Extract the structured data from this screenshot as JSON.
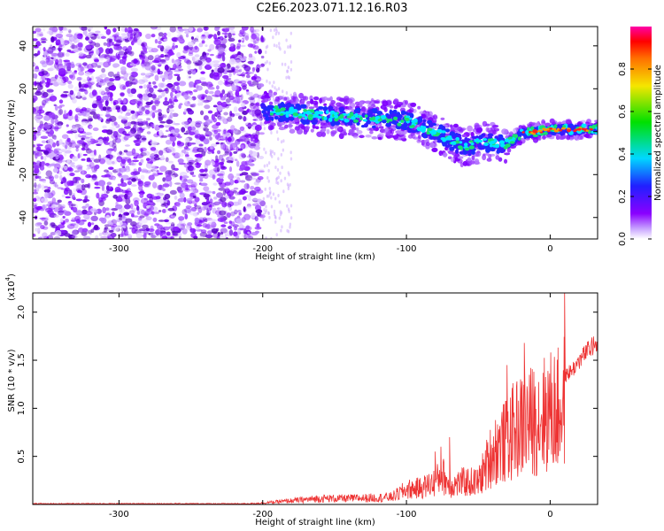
{
  "title": "C2E6.2023.071.12.16.R03",
  "colors": {
    "line": "#ee3333",
    "axis": "#000000",
    "scatter_main": "#7f00ff",
    "scatter_light": "#c9a4ff",
    "band_mid": "#00e5ff",
    "band_high": "#ff2020"
  },
  "chart_data": [
    {
      "type": "heatmap",
      "xlabel": "Height of straight line (km)",
      "ylabel": "Frequency (Hz)",
      "xlim": [
        -360,
        33
      ],
      "ylim": [
        -50,
        49
      ],
      "x_ticks": [
        -300,
        -200,
        -100,
        0
      ],
      "x_tick_labels": [
        "-300",
        "-200",
        "-100",
        "0"
      ],
      "y_ticks": [
        -40,
        -20,
        0,
        20,
        40
      ],
      "y_tick_labels": [
        "-40",
        "-20",
        "0",
        "20",
        "40"
      ],
      "grid": false,
      "band_centerline": [
        {
          "x": -200,
          "y": 10
        },
        {
          "x": -150,
          "y": 7
        },
        {
          "x": -120,
          "y": 6
        },
        {
          "x": -100,
          "y": 5
        },
        {
          "x": -80,
          "y": 0
        },
        {
          "x": -60,
          "y": -7
        },
        {
          "x": -45,
          "y": -5
        },
        {
          "x": -30,
          "y": -6
        },
        {
          "x": -20,
          "y": -1
        },
        {
          "x": 0,
          "y": 1
        },
        {
          "x": 30,
          "y": 1
        }
      ],
      "colorbar": {
        "label": "Normalized spectral amplitude",
        "range": [
          0.0,
          1.0
        ],
        "ticks": [
          0.0,
          0.2,
          0.4,
          0.6,
          0.8
        ],
        "tick_labels": [
          "0.0",
          "0.2",
          "0.4",
          "0.6",
          "0.8"
        ],
        "colormap": "rainbow"
      }
    },
    {
      "type": "line",
      "xlabel": "Height of straight line (km)",
      "ylabel": "SNR (10 * v/v)",
      "y_multiplier": "(x10",
      "y_multiplier_exp": "4",
      "y_multiplier_close": ")",
      "xlim": [
        -360,
        33
      ],
      "ylim": [
        0,
        2.2
      ],
      "x_ticks": [
        -300,
        -200,
        -100,
        0
      ],
      "x_tick_labels": [
        "-300",
        "-200",
        "-100",
        "0"
      ],
      "y_ticks": [
        0.5,
        1.0,
        1.5,
        2.0
      ],
      "y_tick_labels": [
        "0.5",
        "1.0",
        "1.5",
        "2.0"
      ],
      "grid": false,
      "series": [
        {
          "x": [
            -360,
            -300,
            -250,
            -210,
            -200,
            -180,
            -160,
            -140,
            -120,
            -110,
            -100,
            -90,
            -80,
            -75,
            -70,
            -60,
            -50,
            -45,
            -40,
            -35,
            -30,
            -25,
            -20,
            -15,
            -10,
            -5,
            0,
            5,
            10,
            15,
            20,
            25,
            30,
            33
          ],
          "y": [
            0.01,
            0.01,
            0.01,
            0.01,
            0.02,
            0.05,
            0.08,
            0.08,
            0.09,
            0.1,
            0.2,
            0.22,
            0.3,
            0.4,
            0.25,
            0.3,
            0.3,
            0.5,
            0.7,
            0.8,
            0.85,
            1.0,
            1.05,
            1.1,
            1.15,
            1.2,
            1.25,
            1.25,
            1.4,
            1.45,
            1.55,
            1.65,
            1.72,
            1.78
          ],
          "peaks": [
            {
              "x": -80,
              "y": 0.55
            },
            {
              "x": -76,
              "y": 0.6
            },
            {
              "x": -70,
              "y": 0.7
            },
            {
              "x": -30,
              "y": 1.45
            },
            {
              "x": -18,
              "y": 1.68
            },
            {
              "x": 10,
              "y": 2.25
            }
          ]
        }
      ]
    }
  ]
}
